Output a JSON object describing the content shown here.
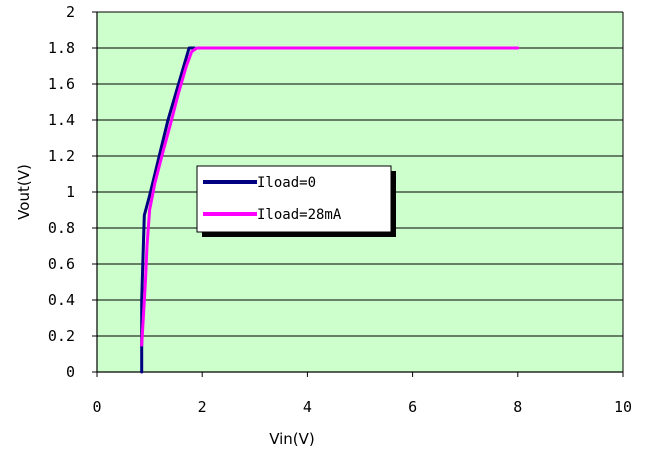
{
  "chart_data": {
    "type": "line",
    "xlabel": "Vin(V)",
    "ylabel": "Vout(V)",
    "xlim": [
      0,
      10
    ],
    "ylim": [
      0,
      2
    ],
    "xticks": [
      0,
      2,
      4,
      6,
      8,
      10
    ],
    "yticks": [
      0,
      0.2,
      0.4,
      0.6,
      0.8,
      1,
      1.2,
      1.4,
      1.6,
      1.8,
      2
    ],
    "xtick_labels": [
      "0",
      "2",
      "4",
      "6",
      "8",
      "10"
    ],
    "ytick_labels": [
      "0",
      "0.2",
      "0.4",
      "0.6",
      "0.8",
      "1",
      "1.2",
      "1.4",
      "1.6",
      "1.8",
      "2"
    ],
    "grid": "horizontal",
    "background": "#ccffcc",
    "legend_position": "center-left",
    "series": [
      {
        "name": "Iload=0",
        "color": "#000080",
        "x": [
          0.85,
          0.85,
          0.87,
          0.9,
          1.0,
          1.1,
          1.2,
          1.35,
          1.5,
          1.65,
          1.75,
          1.8,
          1.85
        ],
        "y": [
          0.0,
          0.4,
          0.6,
          0.87,
          0.98,
          1.1,
          1.22,
          1.4,
          1.55,
          1.7,
          1.8,
          1.8,
          1.8
        ]
      },
      {
        "name": "Iload=28mA",
        "color": "#ff00ff",
        "x": [
          0.85,
          0.88,
          0.92,
          0.95,
          1.0,
          1.1,
          1.25,
          1.4,
          1.55,
          1.7,
          1.8,
          1.9,
          2.0,
          4.0,
          6.0,
          8.0
        ],
        "y": [
          0.15,
          0.3,
          0.5,
          0.7,
          0.9,
          1.05,
          1.22,
          1.38,
          1.55,
          1.7,
          1.78,
          1.8,
          1.8,
          1.8,
          1.8,
          1.8
        ]
      }
    ]
  }
}
